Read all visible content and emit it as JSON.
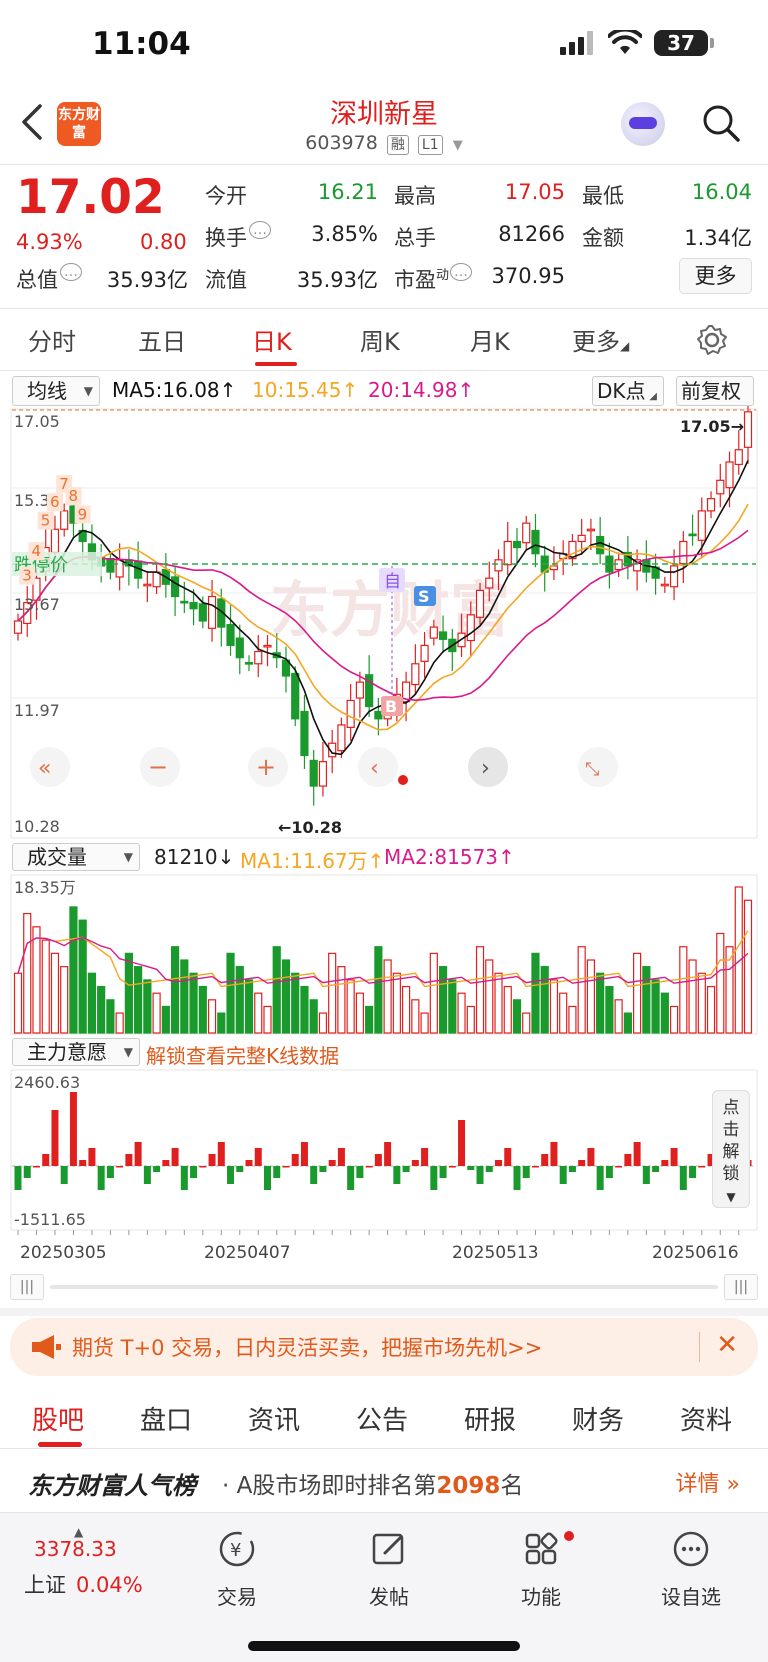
{
  "status_bar": {
    "time": "11:04",
    "battery": "37"
  },
  "header": {
    "logo_text": "东方财富",
    "stock_name": "深圳新星",
    "stock_code": "603978",
    "tags": [
      "融",
      "L1"
    ]
  },
  "quote": {
    "price": "17.02",
    "change_pct": "4.93%",
    "change_abs": "0.80",
    "fields": [
      {
        "label": "今开",
        "value": "16.21",
        "color": "green"
      },
      {
        "label": "最高",
        "value": "17.05",
        "color": "red"
      },
      {
        "label": "最低",
        "value": "16.04",
        "color": "green"
      },
      {
        "label": "换手",
        "value": "3.85%",
        "color": "dark"
      },
      {
        "label": "总手",
        "value": "81266",
        "color": "dark"
      },
      {
        "label": "金额",
        "value": "1.34亿",
        "color": "dark"
      },
      {
        "label": "总值",
        "value": "35.93亿",
        "color": "dark"
      },
      {
        "label": "流值",
        "value": "35.93亿",
        "color": "dark"
      },
      {
        "label": "市盈",
        "label_sup": "动",
        "value": "370.95",
        "color": "dark"
      }
    ],
    "more_label": "更多"
  },
  "period_tabs": [
    "分时",
    "五日",
    "日K",
    "周K",
    "月K",
    "更多"
  ],
  "active_period": "日K",
  "ma_bar": {
    "select": "均线",
    "ma5": "MA5:16.08",
    "ma10": "10:15.45",
    "ma20": "20:14.98",
    "dk_label": "DK点",
    "adjust_label": "前复权"
  },
  "kline": {
    "y_labels": [
      "17.05",
      "15.36",
      "13.67",
      "11.97",
      "10.28"
    ],
    "high_marker": "17.05",
    "low_marker": "10.28",
    "dashed_line_label": "跌停价",
    "signal_labels": {
      "self": "自",
      "sell": "S",
      "buy": "B"
    },
    "td_numbers_left": [
      "3",
      "4",
      "5",
      "6",
      "7",
      "8",
      "9"
    ],
    "watermark": "东方财富",
    "colors": {
      "up": "#e0201e",
      "down": "#1a9a2d",
      "ma5": "#111111",
      "ma10": "#f5a623",
      "ma20": "#d81b8c"
    }
  },
  "volume": {
    "select": "成交量",
    "current": "81210",
    "ma1": "MA1:11.67万",
    "ma2": "MA2:81573",
    "top_label": "18.35万"
  },
  "main_force": {
    "select": "主力意愿",
    "unlock_text": "解锁查看完整K线数据",
    "top_label": "2460.63",
    "bottom_label": "-1511.65",
    "unlock_button": "点击解锁",
    "dates": [
      "20250305",
      "20250407",
      "20250513",
      "20250616"
    ]
  },
  "banner": {
    "text": "期货 T+0 交易，日内灵活买卖，把握市场先机>>"
  },
  "bottom_tabs": [
    "股吧",
    "盘口",
    "资讯",
    "公告",
    "研报",
    "财务",
    "资料"
  ],
  "rank": {
    "brand": "东方财富人气榜",
    "prefix": "· A股市场即时排名第",
    "number": "2098",
    "suffix": "名",
    "detail": "详情"
  },
  "nav": {
    "index_value": "3378.33",
    "index_name": "上证",
    "index_change": "0.04%",
    "items": [
      "交易",
      "发帖",
      "功能",
      "设自选"
    ]
  }
}
